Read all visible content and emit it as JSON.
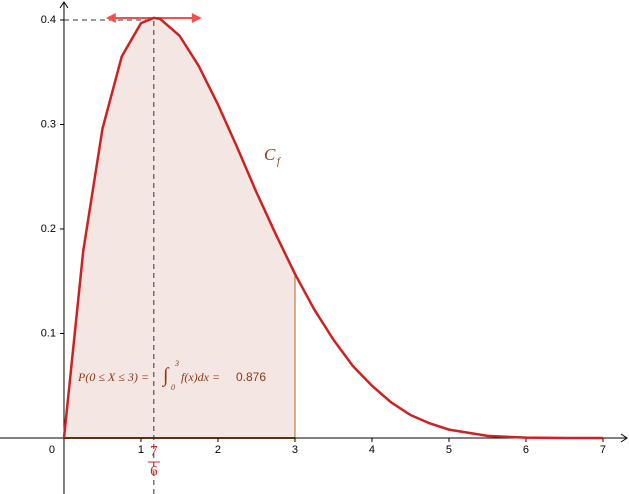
{
  "chart_data": {
    "type": "line",
    "x": [
      0,
      0.25,
      0.5,
      0.75,
      1,
      1.1667,
      1.25,
      1.5,
      1.75,
      2,
      2.25,
      2.5,
      2.75,
      3,
      3.25,
      3.5,
      3.75,
      4,
      4.25,
      4.5,
      4.75,
      5,
      5.5,
      6,
      6.5,
      7
    ],
    "series": [
      {
        "color": "#cc2222",
        "values": [
          0,
          0.179,
          0.296,
          0.365,
          0.397,
          0.402,
          0.401,
          0.385,
          0.356,
          0.319,
          0.278,
          0.235,
          0.195,
          0.157,
          0.123,
          0.094,
          0.069,
          0.05,
          0.034,
          0.022,
          0.014,
          0.008,
          0.002,
          0.0003,
          1e-05,
          0
        ]
      }
    ],
    "xlim": [
      -0.831,
      7.338
    ],
    "ylim": [
      -0.0536,
      0.4191
    ],
    "xticks": [
      0,
      1,
      2,
      3,
      4,
      5,
      6,
      7
    ],
    "yticks": [
      0.1,
      0.2,
      0.3,
      0.4
    ],
    "shade_range": [
      0,
      3
    ],
    "shade_color": "#f4e6e2",
    "curve_label": "C",
    "curve_label_sub": "f",
    "mode": {
      "x": 1.1667,
      "y": 0.4,
      "numerator": "7",
      "denominator": "6"
    },
    "probability": {
      "text": "P(0 ≤ X ≤ 3) =",
      "integral_upper": "3",
      "integral_lower": "0",
      "integrand": "f(x)dx =",
      "value": 0.876
    }
  }
}
